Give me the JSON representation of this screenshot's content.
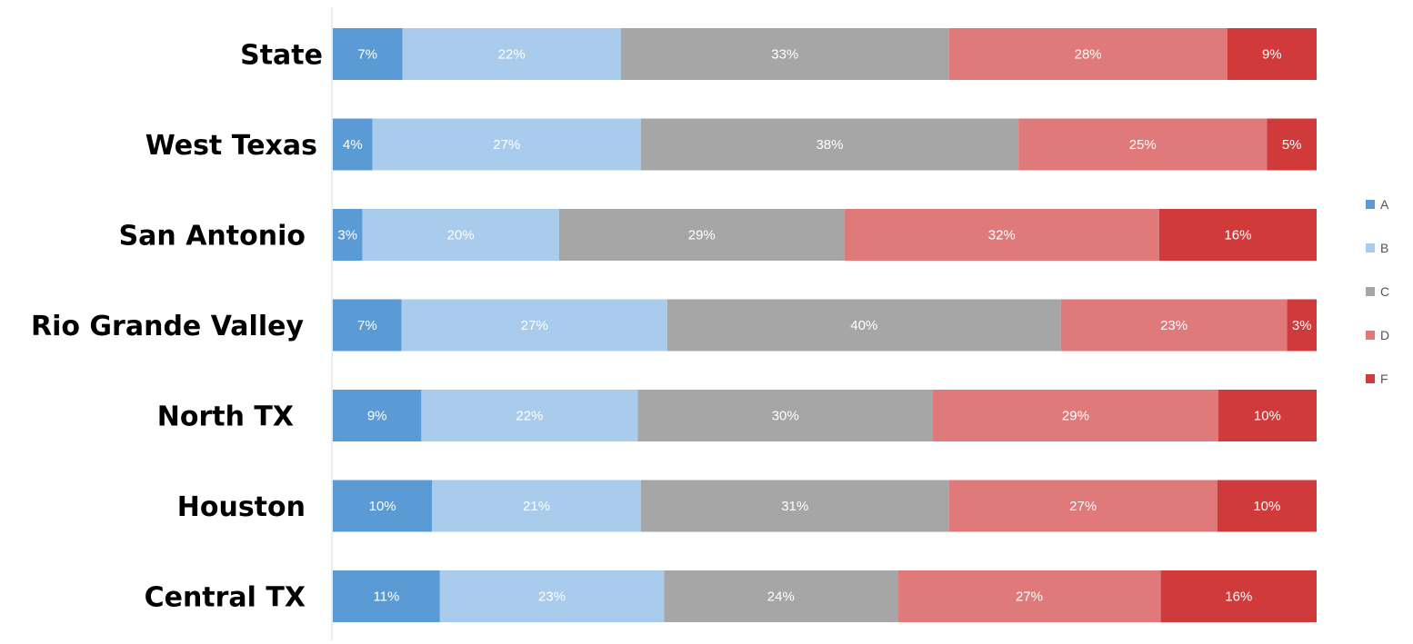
{
  "chart_data": {
    "type": "bar",
    "orientation": "horizontal",
    "stacked": true,
    "normalized": true,
    "title": "",
    "xlabel": "",
    "ylabel": "",
    "categories": [
      "State",
      "West Texas",
      "San Antonio",
      "Rio Grande Valley",
      "North TX",
      "Houston",
      "Central TX"
    ],
    "series": [
      {
        "name": "A",
        "color": "#5b9bd5",
        "values": [
          7,
          4,
          3,
          7,
          9,
          10,
          11
        ],
        "labels": [
          "7%",
          "4%",
          "3%",
          "7%",
          "9%",
          "10%",
          "11%"
        ]
      },
      {
        "name": "B",
        "color": "#a9cbec",
        "values": [
          22,
          27,
          20,
          27,
          22,
          21,
          23
        ],
        "labels": [
          "22%",
          "27%",
          "20%",
          "27%",
          "22%",
          "21%",
          "23%"
        ]
      },
      {
        "name": "C",
        "color": "#a6a6a6",
        "values": [
          33,
          38,
          29,
          40,
          30,
          31,
          24
        ],
        "labels": [
          "33%",
          "38%",
          "29%",
          "40%",
          "30%",
          "31%",
          "24%"
        ]
      },
      {
        "name": "D",
        "color": "#e07a7a",
        "values": [
          28,
          25,
          32,
          23,
          29,
          27,
          27
        ],
        "labels": [
          "28%",
          "25%",
          "32%",
          "23%",
          "29%",
          "27%",
          "27%"
        ]
      },
      {
        "name": "F",
        "color": "#d03a3a",
        "values": [
          9,
          5,
          16,
          3,
          10,
          10,
          16
        ],
        "labels": [
          "9%",
          "5%",
          "16%",
          "3%",
          "10%",
          "10%",
          "16%"
        ]
      }
    ],
    "legend": {
      "position": "right",
      "entries": [
        "A",
        "B",
        "C",
        "D",
        "F"
      ]
    },
    "grid": false
  }
}
